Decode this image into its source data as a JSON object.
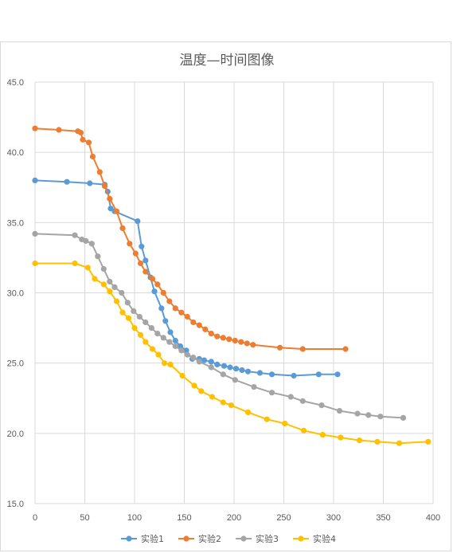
{
  "chart_data": {
    "type": "line",
    "title": "温度—时间图像",
    "xlabel": "",
    "ylabel": "",
    "xlim": [
      0,
      400
    ],
    "ylim": [
      15.0,
      45.0
    ],
    "x_ticks": [
      "0",
      "50",
      "100",
      "150",
      "200",
      "250",
      "300",
      "350",
      "400"
    ],
    "y_ticks": [
      "15.0",
      "20.0",
      "25.0",
      "30.0",
      "35.0",
      "40.0",
      "45.0"
    ],
    "grid": true,
    "legend_position": "bottom",
    "series": [
      {
        "name": "实验1",
        "color": "#5b9bd5",
        "points": [
          [
            0,
            38.0
          ],
          [
            32,
            37.9
          ],
          [
            55,
            37.8
          ],
          [
            70,
            37.7
          ],
          [
            73,
            37.2
          ],
          [
            76,
            36.0
          ],
          [
            80,
            35.8
          ],
          [
            103,
            35.1
          ],
          [
            107,
            33.3
          ],
          [
            111,
            32.3
          ],
          [
            116,
            31.1
          ],
          [
            120,
            30.1
          ],
          [
            127,
            28.9
          ],
          [
            131,
            28.0
          ],
          [
            136,
            27.2
          ],
          [
            141,
            26.6
          ],
          [
            146,
            26.2
          ],
          [
            152,
            25.9
          ],
          [
            158,
            25.3
          ],
          [
            165,
            25.3
          ],
          [
            170,
            25.2
          ],
          [
            177,
            25.1
          ],
          [
            183,
            24.9
          ],
          [
            190,
            24.8
          ],
          [
            196,
            24.7
          ],
          [
            202,
            24.6
          ],
          [
            208,
            24.5
          ],
          [
            214,
            24.4
          ],
          [
            226,
            24.3
          ],
          [
            238,
            24.2
          ],
          [
            260,
            24.1
          ],
          [
            285,
            24.2
          ],
          [
            304,
            24.2
          ]
        ]
      },
      {
        "name": "实验2",
        "color": "#ed7d31",
        "points": [
          [
            0,
            41.7
          ],
          [
            24,
            41.6
          ],
          [
            43,
            41.5
          ],
          [
            46,
            41.4
          ],
          [
            48,
            40.9
          ],
          [
            54,
            40.7
          ],
          [
            58,
            39.7
          ],
          [
            65,
            38.6
          ],
          [
            70,
            37.6
          ],
          [
            75,
            36.7
          ],
          [
            82,
            35.8
          ],
          [
            88,
            34.6
          ],
          [
            95,
            33.5
          ],
          [
            101,
            32.8
          ],
          [
            106,
            32.1
          ],
          [
            111,
            31.5
          ],
          [
            118,
            31.0
          ],
          [
            123,
            30.6
          ],
          [
            129,
            30.0
          ],
          [
            135,
            29.4
          ],
          [
            141,
            28.9
          ],
          [
            147,
            28.6
          ],
          [
            153,
            28.3
          ],
          [
            159,
            27.9
          ],
          [
            165,
            27.7
          ],
          [
            171,
            27.4
          ],
          [
            177,
            27.1
          ],
          [
            183,
            26.9
          ],
          [
            189,
            26.8
          ],
          [
            195,
            26.7
          ],
          [
            201,
            26.6
          ],
          [
            207,
            26.5
          ],
          [
            213,
            26.4
          ],
          [
            219,
            26.3
          ],
          [
            246,
            26.1
          ],
          [
            269,
            26.0
          ],
          [
            312,
            26.0
          ]
        ]
      },
      {
        "name": "实验3",
        "color": "#a5a5a5",
        "points": [
          [
            0,
            34.2
          ],
          [
            40,
            34.1
          ],
          [
            47,
            33.8
          ],
          [
            51,
            33.7
          ],
          [
            57,
            33.5
          ],
          [
            63,
            32.6
          ],
          [
            69,
            31.7
          ],
          [
            75,
            30.8
          ],
          [
            80,
            30.4
          ],
          [
            87,
            30.0
          ],
          [
            93,
            29.3
          ],
          [
            99,
            28.7
          ],
          [
            105,
            28.3
          ],
          [
            111,
            27.9
          ],
          [
            117,
            27.5
          ],
          [
            123,
            27.1
          ],
          [
            129,
            26.8
          ],
          [
            135,
            26.5
          ],
          [
            141,
            26.2
          ],
          [
            147,
            25.9
          ],
          [
            153,
            25.6
          ],
          [
            159,
            25.4
          ],
          [
            165,
            25.1
          ],
          [
            177,
            24.7
          ],
          [
            189,
            24.2
          ],
          [
            201,
            23.8
          ],
          [
            220,
            23.3
          ],
          [
            238,
            22.9
          ],
          [
            257,
            22.6
          ],
          [
            269,
            22.3
          ],
          [
            288,
            22.0
          ],
          [
            306,
            21.6
          ],
          [
            324,
            21.4
          ],
          [
            335,
            21.3
          ],
          [
            347,
            21.2
          ],
          [
            370,
            21.1
          ]
        ]
      },
      {
        "name": "实验4",
        "color": "#ffc000",
        "points": [
          [
            0,
            32.1
          ],
          [
            40,
            32.1
          ],
          [
            53,
            31.8
          ],
          [
            60,
            31.0
          ],
          [
            69,
            30.6
          ],
          [
            75,
            30.1
          ],
          [
            82,
            29.4
          ],
          [
            88,
            28.6
          ],
          [
            94,
            28.2
          ],
          [
            100,
            27.5
          ],
          [
            106,
            27.0
          ],
          [
            111,
            26.5
          ],
          [
            118,
            26.0
          ],
          [
            124,
            25.6
          ],
          [
            130,
            25.0
          ],
          [
            136,
            24.9
          ],
          [
            148,
            24.1
          ],
          [
            160,
            23.4
          ],
          [
            167,
            23.0
          ],
          [
            178,
            22.6
          ],
          [
            189,
            22.2
          ],
          [
            197,
            22.0
          ],
          [
            214,
            21.5
          ],
          [
            233,
            21.0
          ],
          [
            251,
            20.7
          ],
          [
            270,
            20.2
          ],
          [
            289,
            19.9
          ],
          [
            307,
            19.7
          ],
          [
            326,
            19.5
          ],
          [
            344,
            19.4
          ],
          [
            366,
            19.3
          ],
          [
            395,
            19.4
          ]
        ]
      }
    ]
  }
}
